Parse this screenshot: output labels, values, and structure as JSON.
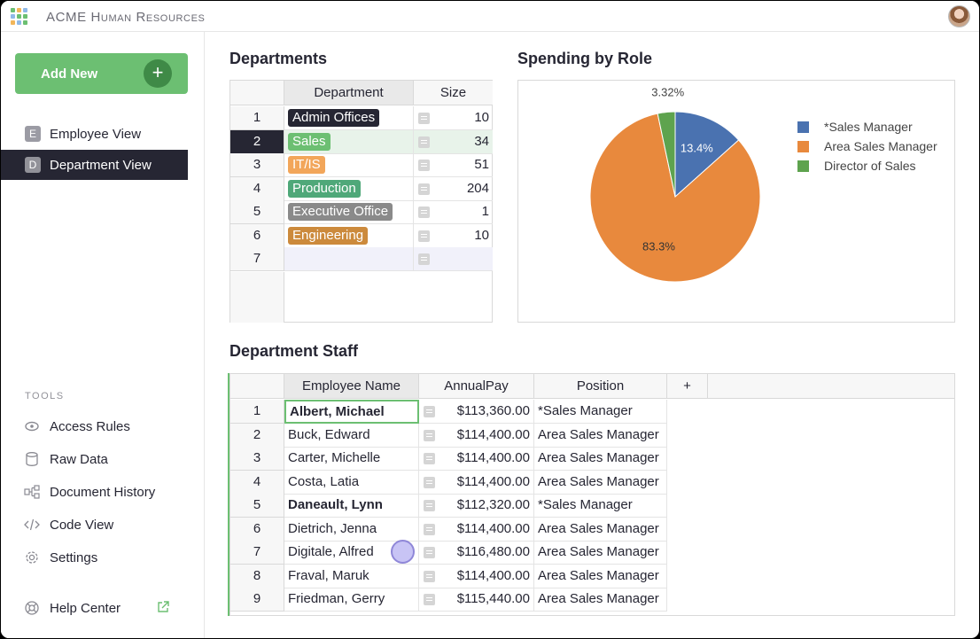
{
  "app": {
    "title": "ACME Human Resources"
  },
  "sidebar": {
    "add_new_label": "Add New",
    "nav": [
      {
        "badge": "E",
        "label": "Employee View",
        "active": false
      },
      {
        "badge": "D",
        "label": "Department View",
        "active": true
      }
    ],
    "tools_heading": "TOOLS",
    "tools": [
      {
        "icon": "eye-icon",
        "label": "Access Rules"
      },
      {
        "icon": "database-icon",
        "label": "Raw Data"
      },
      {
        "icon": "history-icon",
        "label": "Document History"
      },
      {
        "icon": "code-icon",
        "label": "Code View"
      },
      {
        "icon": "gear-icon",
        "label": "Settings"
      }
    ],
    "help_label": "Help Center"
  },
  "departments": {
    "title": "Departments",
    "columns": [
      "Department",
      "Size"
    ],
    "rows": [
      {
        "n": "1",
        "name": "Admin Offices",
        "size": "10",
        "color": "#262633"
      },
      {
        "n": "2",
        "name": "Sales",
        "size": "34",
        "color": "#6cbf72"
      },
      {
        "n": "3",
        "name": "IT/IS",
        "size": "51",
        "color": "#f2a65a"
      },
      {
        "n": "4",
        "name": "Production",
        "size": "204",
        "color": "#4fa879"
      },
      {
        "n": "5",
        "name": "Executive Office",
        "size": "1",
        "color": "#8a8a8a"
      },
      {
        "n": "6",
        "name": "Engineering",
        "size": "10",
        "color": "#cc8a3c"
      },
      {
        "n": "7",
        "name": "",
        "size": "",
        "color": ""
      }
    ],
    "active_row": 1
  },
  "spending": {
    "title": "Spending by Role"
  },
  "chart_data": {
    "type": "pie",
    "title": "Spending by Role",
    "labels": [
      "*Sales Manager",
      "Area Sales Manager",
      "Director of Sales"
    ],
    "values": [
      13.4,
      83.3,
      3.32
    ],
    "value_labels": [
      "13.4%",
      "83.3%",
      "3.32%"
    ],
    "colors": [
      "#4a72b0",
      "#e8893d",
      "#5ea34e"
    ],
    "legend": "right"
  },
  "staff": {
    "title": "Department Staff",
    "columns": [
      "Employee Name",
      "AnnualPay",
      "Position",
      "+"
    ],
    "rows": [
      {
        "n": "1",
        "name": "Albert, Michael",
        "pay": "$113,360.00",
        "position": "*Sales Manager",
        "bold": true
      },
      {
        "n": "2",
        "name": "Buck, Edward",
        "pay": "$114,400.00",
        "position": "Area Sales Manager",
        "bold": false
      },
      {
        "n": "3",
        "name": "Carter, Michelle",
        "pay": "$114,400.00",
        "position": "Area Sales Manager",
        "bold": false
      },
      {
        "n": "4",
        "name": "Costa, Latia",
        "pay": "$114,400.00",
        "position": "Area Sales Manager",
        "bold": false
      },
      {
        "n": "5",
        "name": "Daneault, Lynn",
        "pay": "$112,320.00",
        "position": "*Sales Manager",
        "bold": true
      },
      {
        "n": "6",
        "name": "Dietrich, Jenna",
        "pay": "$114,400.00",
        "position": "Area Sales Manager",
        "bold": false
      },
      {
        "n": "7",
        "name": "Digitale, Alfred",
        "pay": "$116,480.00",
        "position": "Area Sales Manager",
        "bold": false
      },
      {
        "n": "8",
        "name": "Fraval, Maruk",
        "pay": "$114,400.00",
        "position": "Area Sales Manager",
        "bold": false
      },
      {
        "n": "9",
        "name": "Friedman, Gerry",
        "pay": "$115,440.00",
        "position": "Area Sales Manager",
        "bold": false
      }
    ]
  }
}
